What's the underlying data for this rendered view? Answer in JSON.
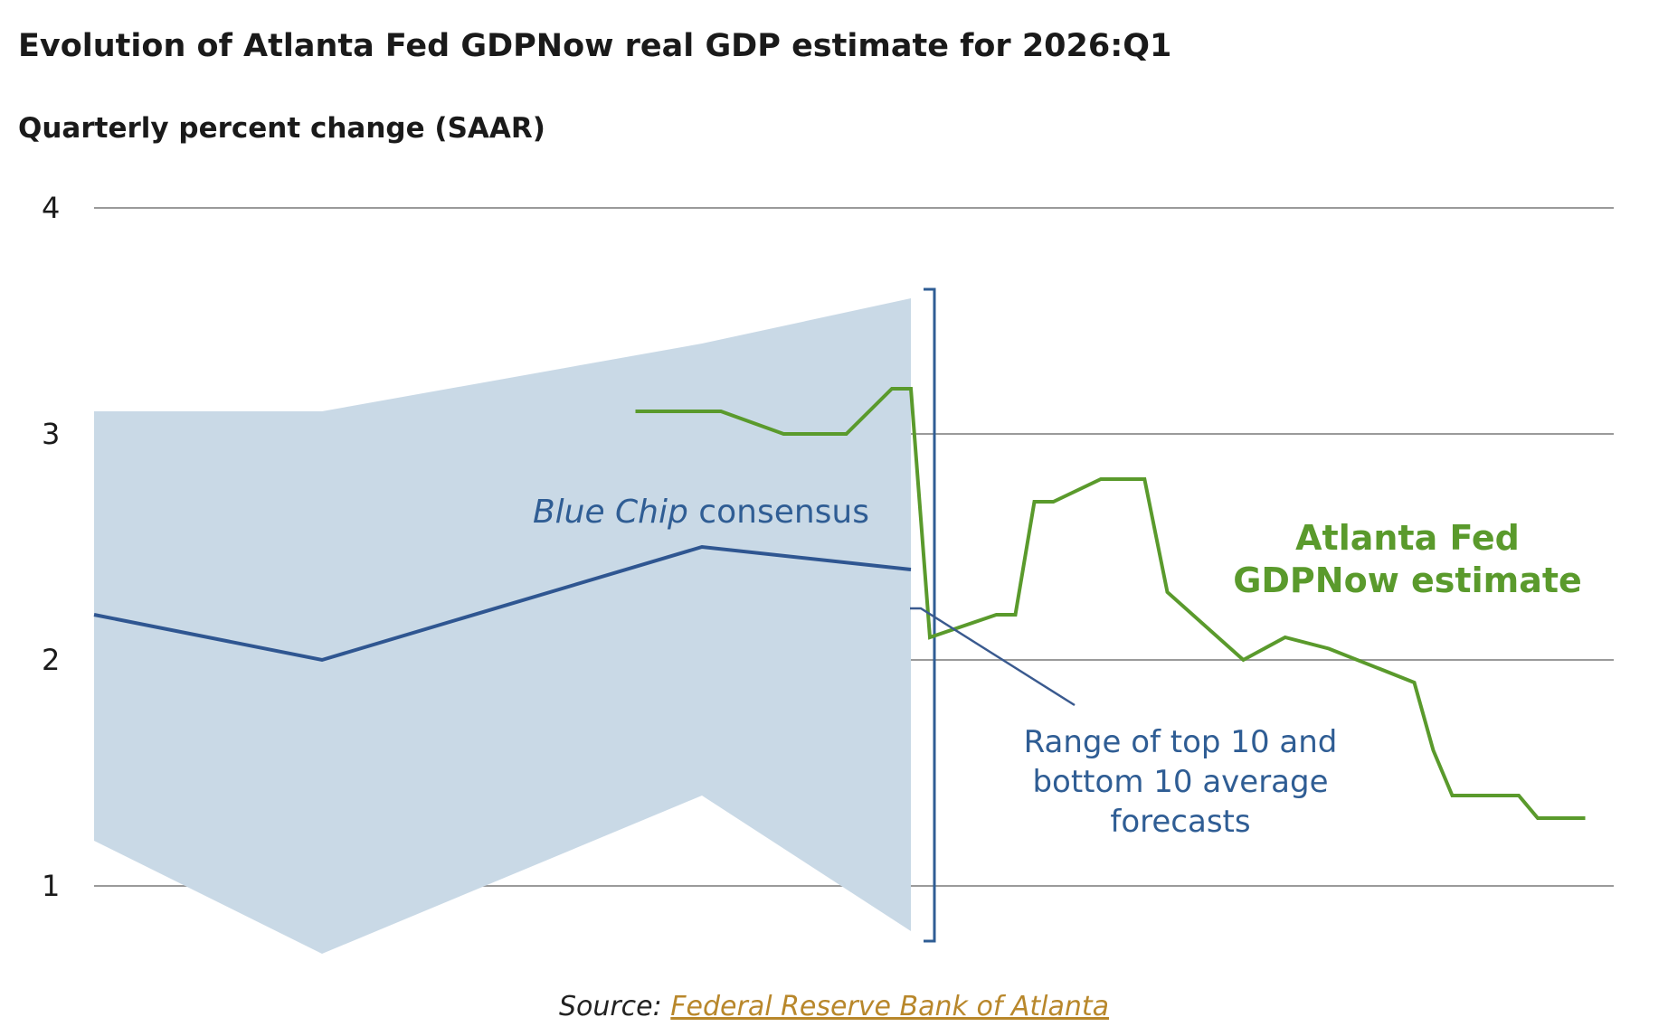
{
  "chart_data": {
    "type": "line",
    "title": "Evolution of Atlanta Fed GDPNow real GDP estimate for 2026:Q1",
    "ylabel": "Quarterly percent change (SAAR)",
    "ylim": [
      0.6,
      4.0
    ],
    "yticks": [
      {
        "value": 4,
        "label": "4"
      },
      {
        "value": 3,
        "label": "3"
      },
      {
        "value": 2,
        "label": "2"
      },
      {
        "value": 1,
        "label": "1"
      }
    ],
    "grid": true,
    "series": [
      {
        "name": "Blue Chip consensus",
        "color": "#2f5691",
        "points": [
          {
            "x": 0,
            "y": 2.2
          },
          {
            "x": 12,
            "y": 2.0
          },
          {
            "x": 32,
            "y": 2.5
          },
          {
            "x": 43,
            "y": 2.4
          }
        ]
      },
      {
        "name": "Atlanta Fed GDPNow estimate",
        "color": "#5a9a2c",
        "points": [
          {
            "x": 28.5,
            "y": 3.1
          },
          {
            "x": 33,
            "y": 3.1
          },
          {
            "x": 36.3,
            "y": 3.0
          },
          {
            "x": 39.6,
            "y": 3.0
          },
          {
            "x": 42,
            "y": 3.2
          },
          {
            "x": 43,
            "y": 3.2
          },
          {
            "x": 44,
            "y": 2.1
          },
          {
            "x": 47.5,
            "y": 2.2
          },
          {
            "x": 48.5,
            "y": 2.2
          },
          {
            "x": 49.5,
            "y": 2.7
          },
          {
            "x": 50.5,
            "y": 2.7
          },
          {
            "x": 53,
            "y": 2.8
          },
          {
            "x": 55.3,
            "y": 2.8
          },
          {
            "x": 56.5,
            "y": 2.3
          },
          {
            "x": 60.5,
            "y": 2.0
          },
          {
            "x": 62.7,
            "y": 2.1
          },
          {
            "x": 65,
            "y": 2.05
          },
          {
            "x": 69.5,
            "y": 1.9
          },
          {
            "x": 70.5,
            "y": 1.6
          },
          {
            "x": 71.5,
            "y": 1.4
          },
          {
            "x": 75,
            "y": 1.4
          },
          {
            "x": 76,
            "y": 1.3
          },
          {
            "x": 78.5,
            "y": 1.3
          }
        ]
      }
    ],
    "range_band": {
      "label": "Range of top 10 and bottom 10 average forecasts",
      "color": "#c9d9e6",
      "upper": [
        {
          "x": 0,
          "y": 3.1
        },
        {
          "x": 12,
          "y": 3.1
        },
        {
          "x": 32,
          "y": 3.4
        },
        {
          "x": 43,
          "y": 3.6
        }
      ],
      "lower": [
        {
          "x": 0,
          "y": 1.2
        },
        {
          "x": 12,
          "y": 0.7
        },
        {
          "x": 32,
          "y": 1.4
        },
        {
          "x": 43,
          "y": 0.8
        }
      ]
    },
    "annotations": {
      "blue_chip": {
        "text_italic": "Blue Chip",
        "text_rest": " consensus"
      },
      "range_lines": [
        "Range of top 10 and",
        "bottom 10 average",
        "forecasts"
      ],
      "gdpnow_lines": [
        "Atlanta Fed",
        "GDPNow estimate"
      ]
    }
  },
  "source": {
    "prefix": "Source: ",
    "link_text": "Federal Reserve Bank of Atlanta"
  },
  "colors": {
    "grid": "#9a9a9a",
    "bracket": "#2f5d94",
    "callout": "#3a5a8f"
  }
}
